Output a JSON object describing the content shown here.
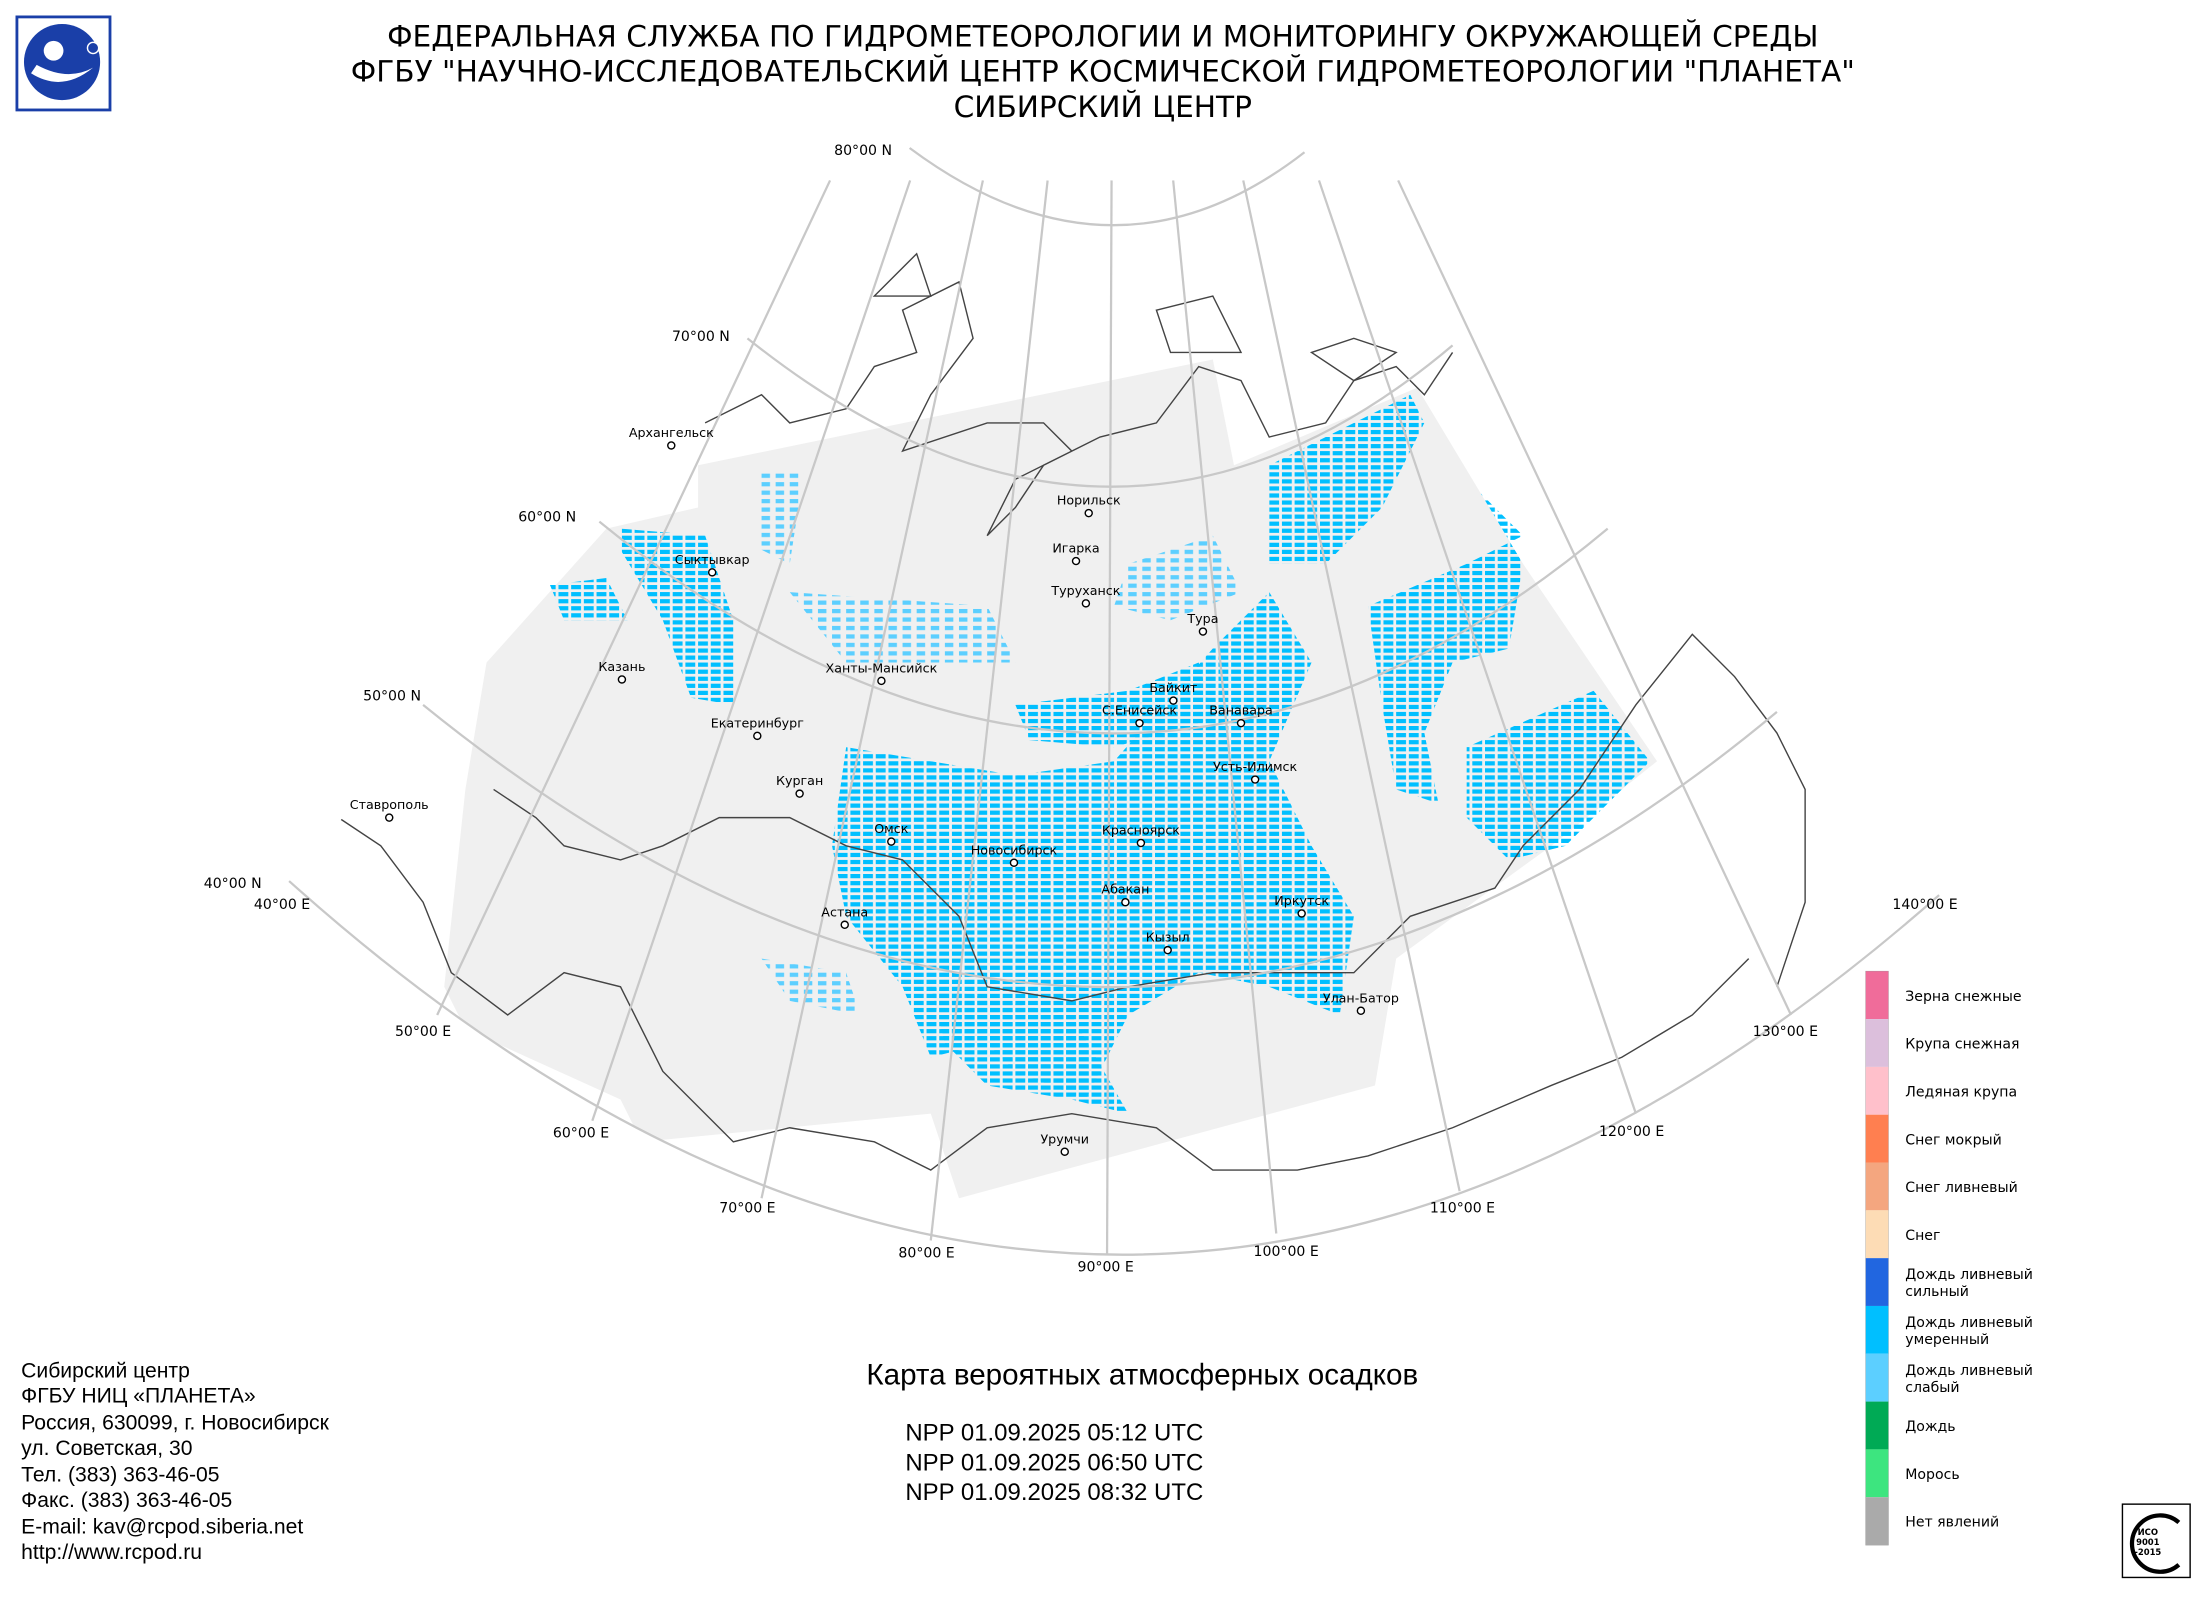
{
  "header": {
    "lines": [
      "ФЕДЕРАЛЬНАЯ СЛУЖБА ПО ГИДРОМЕТЕОРОЛОГИИ И МОНИТОРИНГУ ОКРУЖАЮЩЕЙ СРЕДЫ",
      "ФГБУ \"НАУЧНО-ИССЛЕДОВАТЕЛЬСКИЙ ЦЕНТР КОСМИЧЕСКОЙ ГИДРОМЕТЕОРОЛОГИИ \"ПЛАНЕТА\"",
      "СИБИРСКИЙ ЦЕНТР"
    ]
  },
  "map": {
    "grid_labels": [
      "80°00 N",
      "70°00 N",
      "60°00 N",
      "50°00 N",
      "40°00 N",
      "40°00 E",
      "50°00 E",
      "60°00 E",
      "70°00 E",
      "80°00 E",
      "90°00 E",
      "100°00 E",
      "110°00 E",
      "120°00 E",
      "130°00 E",
      "140°00 E"
    ],
    "cities": [
      "Архангельск",
      "Сыктывкар",
      "Казань",
      "Екатеринбург",
      "Ханты-Мансийск",
      "Курган",
      "Ставрополь",
      "Омск",
      "Астана",
      "Новосибирск",
      "Норильск",
      "Игарка",
      "Туруханск",
      "Тура",
      "Байкит",
      "Ванавара",
      "С.Енисейск",
      "Усть-Илимск",
      "Красноярск",
      "Абакан",
      "Иркутск",
      "Кызыл",
      "Улан-Батор",
      "Урумчи"
    ]
  },
  "legend": {
    "items": [
      {
        "label": [
          "Зерна снежные"
        ],
        "color": "#f06c9a"
      },
      {
        "label": [
          "Крупа снежная"
        ],
        "color": "#dcbfdc"
      },
      {
        "label": [
          "Ледяная крупа"
        ],
        "color": "#ffc0cb"
      },
      {
        "label": [
          "Снег мокрый"
        ],
        "color": "#ff7f50"
      },
      {
        "label": [
          "Снег ливневый"
        ],
        "color": "#f4a67f"
      },
      {
        "label": [
          "Снег"
        ],
        "color": "#fddcb5"
      },
      {
        "label": [
          "Дождь ливневый",
          "сильный"
        ],
        "color": "#2166e0"
      },
      {
        "label": [
          "Дождь ливневый",
          "умеренный"
        ],
        "color": "#00bfff"
      },
      {
        "label": [
          "Дождь ливневый",
          "слабый"
        ],
        "color": "#5ccfff"
      },
      {
        "label": [
          "Дождь"
        ],
        "color": "#00aa55"
      },
      {
        "label": [
          "Морось"
        ],
        "color": "#3de57f"
      },
      {
        "label": [
          "Нет явлений"
        ],
        "color": "#aaaaaa"
      }
    ]
  },
  "title": "Карта вероятных атмосферных осадков",
  "passes": [
    "NPP 01.09.2025  05:12 UTC",
    "NPP 01.09.2025  06:50 UTC",
    "NPP 01.09.2025  08:32 UTC"
  ],
  "contacts": [
    "Сибирский центр",
    "ФГБУ НИЦ «ПЛАНЕТА»",
    "Россия, 630099, г. Новосибирск",
    "ул. Советская, 30",
    "Тел. (383) 363-46-05",
    "Факс. (383) 363-46-05",
    "E-mail: kav@rcpod.siberia.net",
    "http://www.rcpod.ru"
  ],
  "badge": [
    "ИСО",
    "9001",
    "-2015"
  ]
}
